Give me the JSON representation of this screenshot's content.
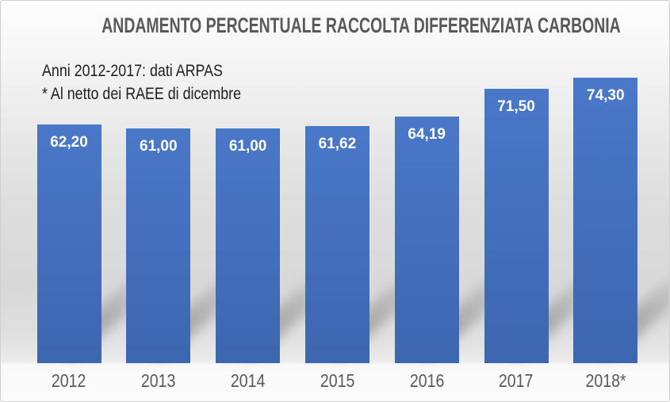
{
  "chart_data": {
    "type": "bar",
    "title": "ANDAMENTO PERCENTUALE RACCOLTA DIFFERENZIATA CARBONIA",
    "annotation": [
      "Anni 2012-2017: dati ARPAS",
      "* Al netto dei RAEE di dicembre"
    ],
    "categories": [
      "2012",
      "2013",
      "2014",
      "2015",
      "2016",
      "2017",
      "2018*"
    ],
    "values": [
      62.2,
      61.0,
      61.0,
      61.62,
      64.19,
      71.5,
      74.3
    ],
    "value_labels": [
      "62,20",
      "61,00",
      "61,00",
      "61,62",
      "64,19",
      "71,50",
      "74,30"
    ],
    "xlabel": "",
    "ylabel": "",
    "ylim": [
      0,
      80
    ],
    "grid": false,
    "legend": false,
    "data_labels_position": "inside-top",
    "colors": {
      "bar_top": "#4A78C8",
      "bar_bottom": "#3D66B0",
      "bar": "#4472C4",
      "title": "#595959",
      "axis_labels": "#595959",
      "value_labels": "#FFFFFF",
      "annotation": "#1F1F1F"
    }
  }
}
